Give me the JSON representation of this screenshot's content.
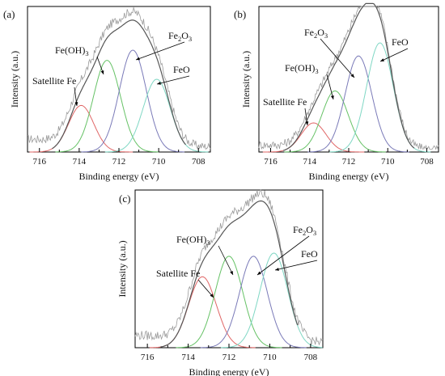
{
  "chart_data": [
    {
      "type": "line",
      "panel_label": "(a)",
      "xlabel": "Binding energy (eV)",
      "ylabel": "Intensity (a.u.)",
      "xlim": [
        716.6,
        707.4
      ],
      "x_ticks": [
        716,
        714,
        712,
        710,
        708
      ],
      "x_reversed": true,
      "y_ticks": "none",
      "grid": false,
      "peaks": [
        {
          "label": "Satellite Fe",
          "center": 713.9,
          "fwhm": 1.5,
          "height": 0.32,
          "color": "#e06666"
        },
        {
          "label": "Fe(OH)3",
          "center": 712.6,
          "fwhm": 1.6,
          "height": 0.63,
          "color": "#66c266"
        },
        {
          "label": "Fe2O3",
          "center": 711.3,
          "fwhm": 1.6,
          "height": 0.7,
          "color": "#7a7ab8"
        },
        {
          "label": "FeO",
          "center": 710.1,
          "fwhm": 1.6,
          "height": 0.5,
          "color": "#7fd7c4"
        }
      ],
      "envelope_peak": {
        "x": 711.5,
        "y": 0.95
      },
      "background_level": 0.09
    },
    {
      "type": "line",
      "panel_label": "(b)",
      "xlabel": "Binding energy (eV)",
      "ylabel": "Intensity (a.u.)",
      "xlim": [
        716.6,
        707.4
      ],
      "x_ticks": [
        716,
        714,
        712,
        710,
        708
      ],
      "x_reversed": true,
      "y_ticks": "none",
      "grid": false,
      "peaks": [
        {
          "label": "Satellite Fe",
          "center": 713.8,
          "fwhm": 1.5,
          "height": 0.2,
          "color": "#e06666"
        },
        {
          "label": "Fe(OH)3",
          "center": 712.7,
          "fwhm": 1.6,
          "height": 0.42,
          "color": "#66c266"
        },
        {
          "label": "Fe2O3",
          "center": 711.5,
          "fwhm": 1.6,
          "height": 0.66,
          "color": "#7a7ab8"
        },
        {
          "label": "FeO",
          "center": 710.4,
          "fwhm": 1.6,
          "height": 0.75,
          "color": "#7fd7c4"
        }
      ],
      "envelope_peak": {
        "x": 710.9,
        "y": 0.96
      },
      "background_level": 0.05
    },
    {
      "type": "line",
      "panel_label": "(c)",
      "xlabel": "Binding energy (eV)",
      "ylabel": "Intensity (a.u.)",
      "xlim": [
        716.6,
        707.4
      ],
      "x_ticks": [
        716,
        714,
        712,
        710,
        708
      ],
      "x_reversed": true,
      "y_ticks": "none",
      "grid": false,
      "peaks": [
        {
          "label": "Satellite Fe",
          "center": 713.3,
          "fwhm": 1.6,
          "height": 0.45,
          "color": "#e06666"
        },
        {
          "label": "Fe(OH)3",
          "center": 712.0,
          "fwhm": 1.6,
          "height": 0.58,
          "color": "#66c266"
        },
        {
          "label": "Fe2O3",
          "center": 710.8,
          "fwhm": 1.6,
          "height": 0.58,
          "color": "#7a7ab8"
        },
        {
          "label": "FeO",
          "center": 709.8,
          "fwhm": 1.6,
          "height": 0.6,
          "color": "#7fd7c4"
        }
      ],
      "envelope_peak": {
        "x": 710.6,
        "y": 0.97
      },
      "background_level": 0.08
    }
  ],
  "colors": {
    "envelope": "#555555",
    "raw_data": "#9a9a9a",
    "axis": "#000000"
  }
}
